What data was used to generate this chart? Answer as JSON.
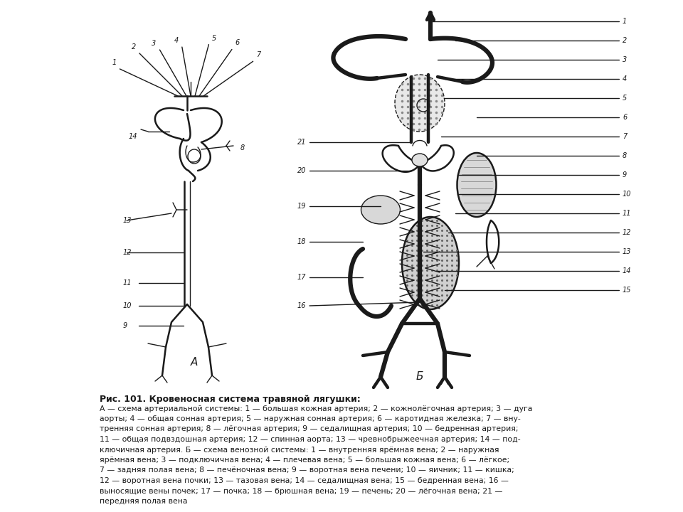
{
  "title": "Рис. 101. Кровеносная система травяной лягушки:",
  "cap1": "А — схема артериальной системы: 1 — большая кожная артерия; 2 — кожнолёгочная артерия; 3 — дуга",
  "cap2": "аорты; 4 — общая сонная артерия; 5 — наружная сонная артерия; 6 — каротидная железка; 7 — вну-",
  "cap3": "тренняя сонная артерия; 8 — лёгочная артерия; 9 — седалищная артерия; 10 — бедренная артерия;",
  "cap4": "11 — общая подвздошная артерия; 12 — спинная аорта; 13 — чревнобрыжеечная артерия; 14 — под-",
  "cap5": "ключичная артерия. Б — схема венозной системы: 1 — внутренняя ярёмная вена; 2 — наружная",
  "cap6": "ярёмная вена; 3 — подключичная вена; 4 — плечевая вена; 5 — большая кожная вена; 6 — лёгкое;",
  "cap7": "7 — задняя полая вена; 8 — печёночная вена; 9 — воротная вена печени; 10 — яичник; 11 — кишка;",
  "cap8": "12 — воротная вена почки; 13 — тазовая вена; 14 — седалищная вена; 15 — бедренная вена; 16 —",
  "cap9": "выносящие вены почек; 17 — почка; 18 — брюшная вена; 19 — печень; 20 — лёгочная вена; 21 —",
  "cap10": "передняя полая вена",
  "bg": "#ffffff",
  "lc": "#1a1a1a"
}
